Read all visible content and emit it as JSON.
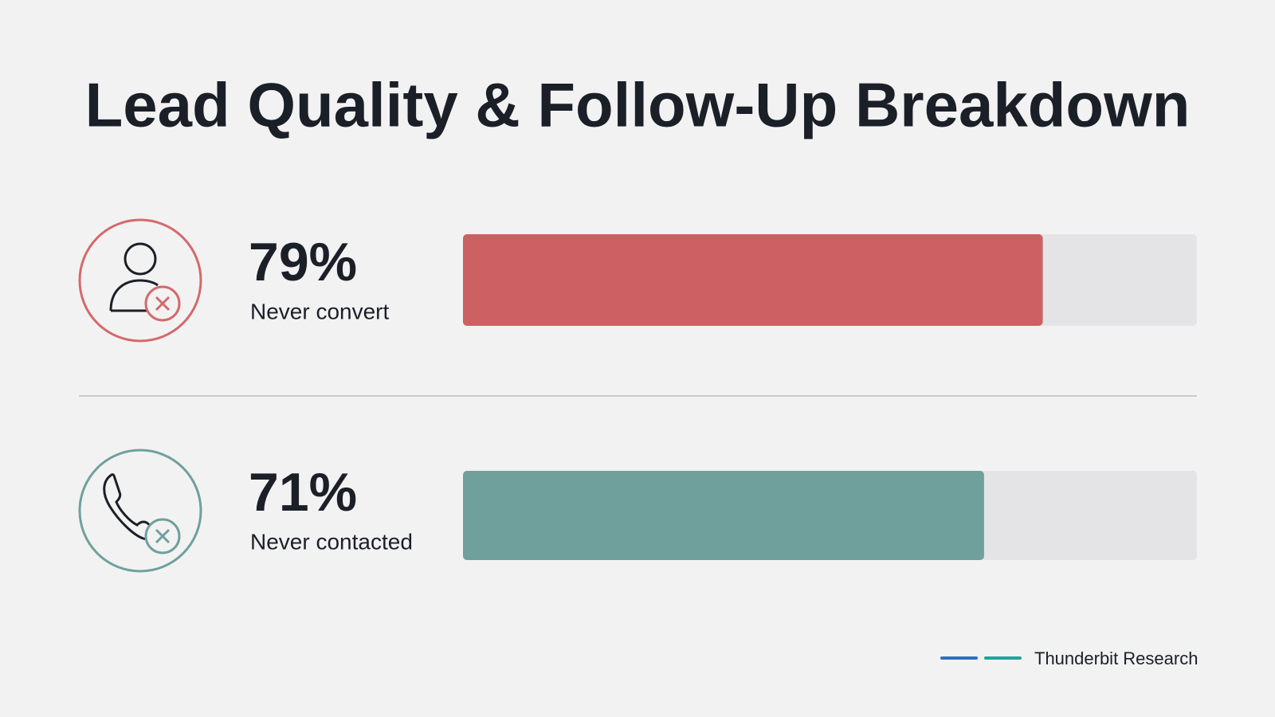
{
  "chart_data": {
    "type": "bar",
    "orientation": "horizontal",
    "title": "Lead Quality & Follow-Up Breakdown",
    "categories": [
      "Never convert",
      "Never contacted"
    ],
    "values": [
      79,
      71
    ],
    "value_labels": [
      "79%",
      "71%"
    ],
    "colors": [
      "#cd6062",
      "#6fa09c"
    ],
    "xlim": [
      0,
      100
    ],
    "source": "Thunderbit Research"
  }
}
